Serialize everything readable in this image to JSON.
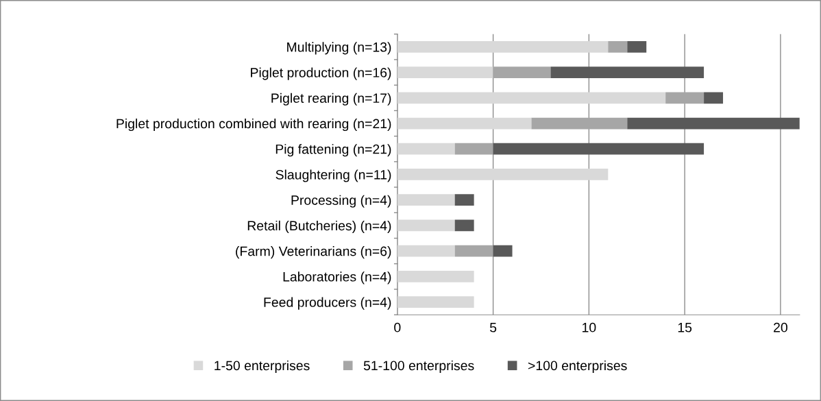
{
  "chart_data": {
    "type": "bar",
    "orientation": "horizontal",
    "stacked": true,
    "categories": [
      "Multiplying (n=13)",
      "Piglet production (n=16)",
      "Piglet rearing (n=17)",
      "Piglet production combined with rearing (n=21)",
      "Pig fattening (n=21)",
      "Slaughtering (n=11)",
      "Processing (n=4)",
      "Retail (Butcheries) (n=4)",
      "(Farm) Veterinarians (n=6)",
      "Laboratories (n=4)",
      "Feed producers (n=4)"
    ],
    "series": [
      {
        "name": "1-50 enterprises",
        "color": "#d9d9d9",
        "values": [
          11,
          5,
          14,
          7,
          3,
          11,
          3,
          3,
          3,
          4,
          4
        ]
      },
      {
        "name": "51-100 enterprises",
        "color": "#a6a6a6",
        "values": [
          1,
          3,
          2,
          5,
          2,
          0,
          0,
          0,
          2,
          0,
          0
        ]
      },
      {
        "name": ">100 enterprises",
        "color": "#595959",
        "values": [
          1,
          8,
          1,
          9,
          11,
          0,
          1,
          1,
          1,
          0,
          0
        ]
      }
    ],
    "xlim": [
      0,
      21
    ],
    "xticks": [
      0,
      5,
      10,
      15,
      20
    ],
    "grid": "x",
    "legend": "bottom"
  }
}
